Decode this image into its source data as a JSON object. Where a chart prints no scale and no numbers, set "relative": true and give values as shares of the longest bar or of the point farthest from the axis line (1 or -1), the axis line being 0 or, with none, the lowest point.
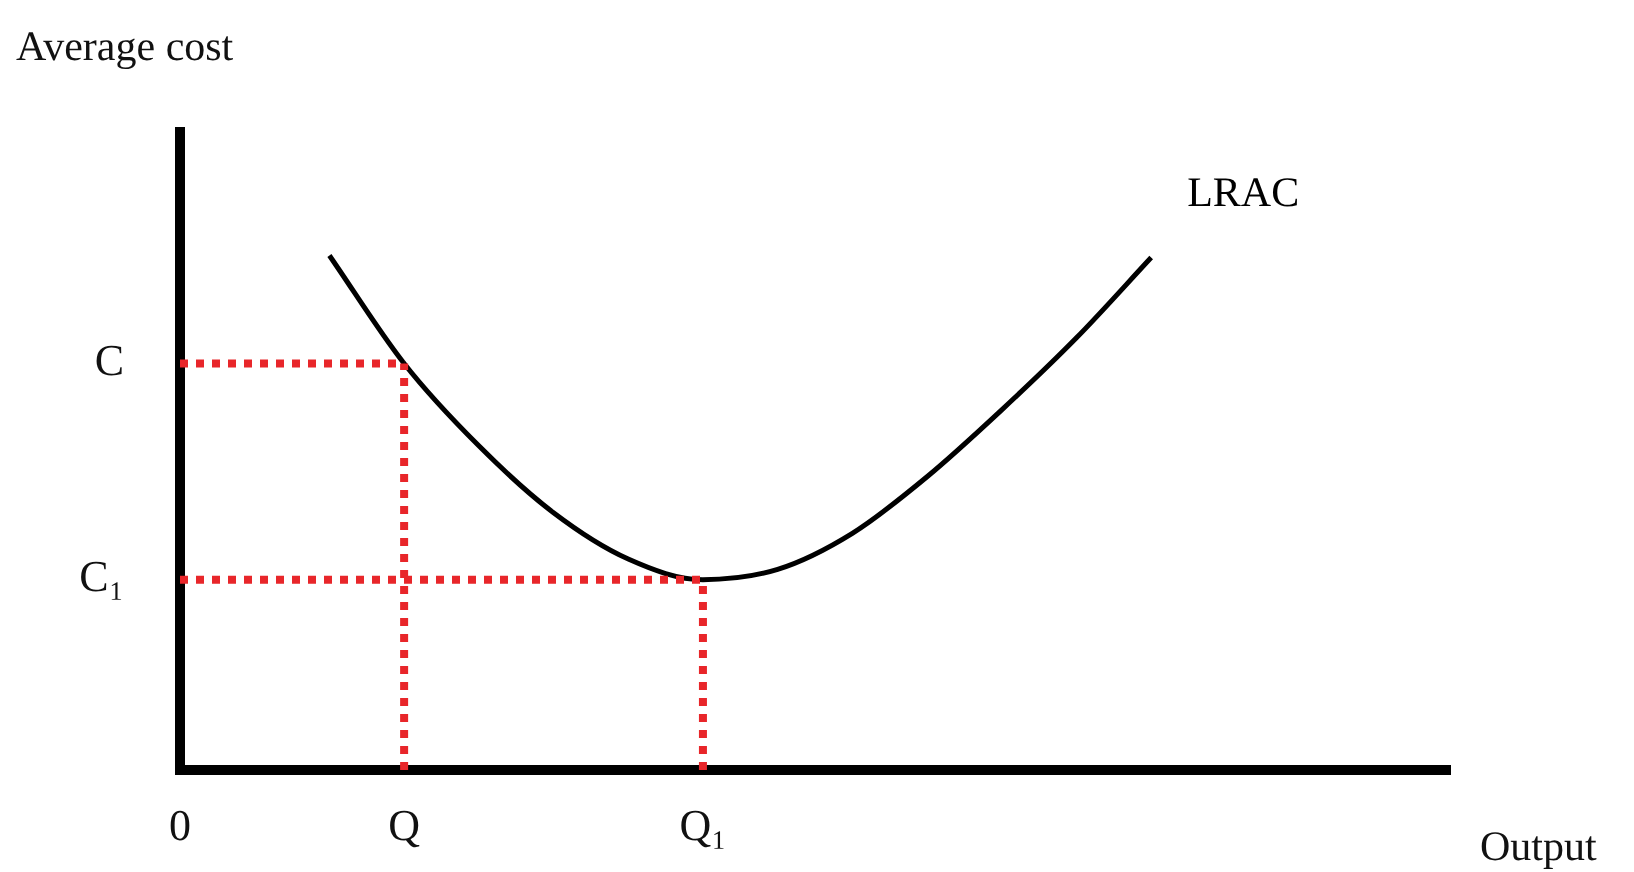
{
  "chart_data": {
    "type": "line",
    "relative": true,
    "xlabel": "Output",
    "ylabel": "Average cost",
    "categories": [
      "0",
      null,
      null,
      "Q",
      null,
      null,
      null,
      "Q₁",
      null,
      null,
      null,
      null,
      null,
      null,
      null,
      null,
      null,
      null
    ],
    "series": [
      {
        "name": "LRAC",
        "color": "#000000",
        "values": [
          null,
          null,
          1,
          0.79,
          0.63,
          0.5,
          0.41,
          0.37,
          0.39,
          0.46,
          0.57,
          0.7,
          0.84,
          0.996,
          null,
          null,
          null,
          null
        ]
      }
    ],
    "ref_lines": [
      {
        "axis": "y",
        "value": 0.79,
        "label": "C",
        "color": "#e8262a",
        "line_style": "dotted"
      },
      {
        "axis": "y",
        "value": 0.37,
        "label": "C₁",
        "color": "#e8262a",
        "line_style": "dotted"
      },
      {
        "axis": "x",
        "value": "Q",
        "label": null,
        "color": "#e8262a",
        "line_style": "dotted"
      },
      {
        "axis": "x",
        "value": "Q₁",
        "label": null,
        "color": "#e8262a",
        "line_style": "dotted"
      }
    ],
    "grid": false,
    "legend": false,
    "marker": "none",
    "line_style": "solid"
  }
}
